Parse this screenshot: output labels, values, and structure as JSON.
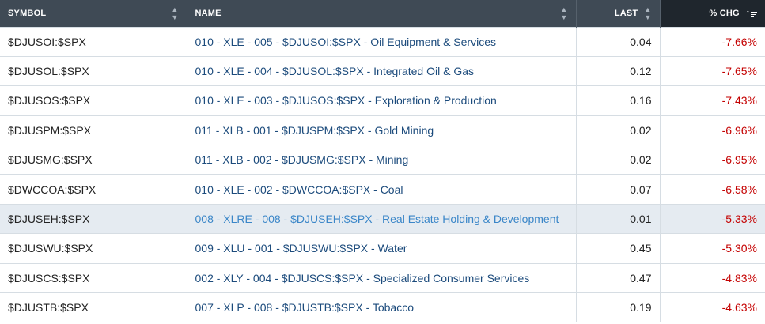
{
  "headers": {
    "symbol": "SYMBOL",
    "name": "NAME",
    "last": "LAST",
    "chg": "% CHG"
  },
  "colors": {
    "header_bg": "#3f4a55",
    "active_header_bg": "#1f262d",
    "name_link": "#1c4b7c",
    "highlight_row": "#e5ebf1",
    "negative": "#c40000"
  },
  "rows": [
    {
      "symbol": "$DJUSOI:$SPX",
      "name": "010 - XLE - 005 - $DJUSOI:$SPX - Oil Equipment & Services",
      "last": "0.04",
      "chg": "-7.66%"
    },
    {
      "symbol": "$DJUSOL:$SPX",
      "name": "010 - XLE - 004 - $DJUSOL:$SPX - Integrated Oil & Gas",
      "last": "0.12",
      "chg": "-7.65%"
    },
    {
      "symbol": "$DJUSOS:$SPX",
      "name": "010 - XLE - 003 - $DJUSOS:$SPX - Exploration & Production",
      "last": "0.16",
      "chg": "-7.43%"
    },
    {
      "symbol": "$DJUSPM:$SPX",
      "name": "011 - XLB - 001 - $DJUSPM:$SPX - Gold Mining",
      "last": "0.02",
      "chg": "-6.96%"
    },
    {
      "symbol": "$DJUSMG:$SPX",
      "name": "011 - XLB - 002 - $DJUSMG:$SPX - Mining",
      "last": "0.02",
      "chg": "-6.95%"
    },
    {
      "symbol": "$DWCCOA:$SPX",
      "name": "010 - XLE - 002 - $DWCCOA:$SPX - Coal",
      "last": "0.07",
      "chg": "-6.58%"
    },
    {
      "symbol": "$DJUSEH:$SPX",
      "name": "008 - XLRE - 008 - $DJUSEH:$SPX - Real Estate Holding & Development",
      "last": "0.01",
      "chg": "-5.33%"
    },
    {
      "symbol": "$DJUSWU:$SPX",
      "name": "009 - XLU - 001 - $DJUSWU:$SPX - Water",
      "last": "0.45",
      "chg": "-5.30%"
    },
    {
      "symbol": "$DJUSCS:$SPX",
      "name": "002 - XLY - 004 - $DJUSCS:$SPX - Specialized Consumer Services",
      "last": "0.47",
      "chg": "-4.83%"
    },
    {
      "symbol": "$DJUSTB:$SPX",
      "name": "007 - XLP - 008 - $DJUSTB:$SPX - Tobacco",
      "last": "0.19",
      "chg": "-4.63%"
    }
  ]
}
